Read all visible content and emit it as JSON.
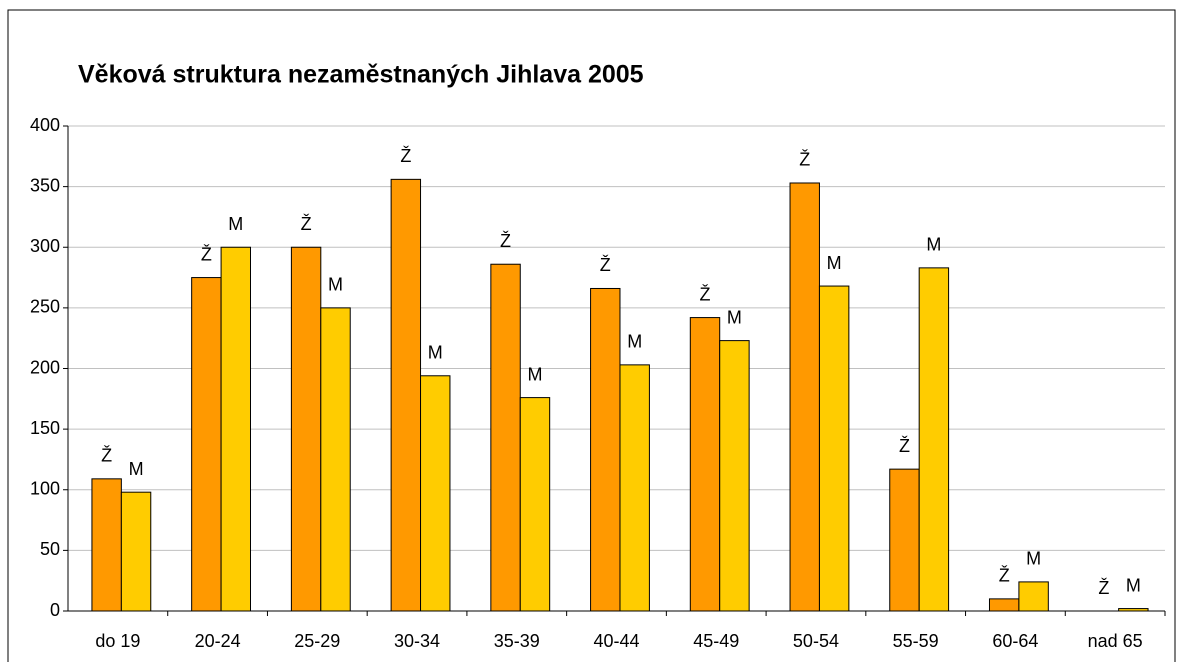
{
  "chart_data": {
    "type": "bar",
    "title": "Věková struktura nezaměstnaných Jihlava 2005",
    "categories": [
      "do 19",
      "20-24",
      "25-29",
      "30-34",
      "35-39",
      "40-44",
      "45-49",
      "50-54",
      "55-59",
      "60-64",
      "nad 65"
    ],
    "series": [
      {
        "name": "Ž",
        "color": "#ff9900",
        "values": [
          109,
          275,
          300,
          356,
          286,
          266,
          242,
          353,
          117,
          10,
          0
        ]
      },
      {
        "name": "M",
        "color": "#ffcc00",
        "values": [
          98,
          300,
          250,
          194,
          176,
          203,
          223,
          268,
          283,
          24,
          2
        ]
      }
    ],
    "ylim": [
      0,
      400
    ],
    "yticks": [
      0,
      50,
      100,
      150,
      200,
      250,
      300,
      350,
      400
    ],
    "grid": true
  }
}
